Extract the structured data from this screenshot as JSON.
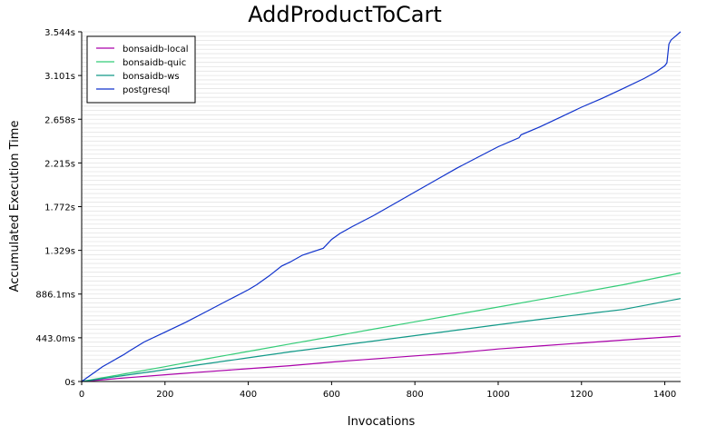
{
  "chart_data": {
    "type": "line",
    "title": "AddProductToCart",
    "xlabel": "Invocations",
    "ylabel": "Accumulated Execution Time",
    "xlim": [
      0,
      1438
    ],
    "ylim": [
      0,
      3.544
    ],
    "x_ticks": [
      0,
      200,
      400,
      600,
      800,
      1000,
      1200,
      1400
    ],
    "y_ticks": [
      {
        "value": 0,
        "label": "0s"
      },
      {
        "value": 0.443,
        "label": "443.0ms"
      },
      {
        "value": 0.8861,
        "label": "886.1ms"
      },
      {
        "value": 1.329,
        "label": "1.329s"
      },
      {
        "value": 1.772,
        "label": "1.772s"
      },
      {
        "value": 2.215,
        "label": "2.215s"
      },
      {
        "value": 2.658,
        "label": "2.658s"
      },
      {
        "value": 3.101,
        "label": "3.101s"
      },
      {
        "value": 3.544,
        "label": "3.544s"
      }
    ],
    "grid": true,
    "legend_position": "top-left",
    "series": [
      {
        "name": "bonsaidb-local",
        "color": "#aa00aa",
        "x": [
          0,
          100,
          200,
          300,
          400,
          500,
          600,
          700,
          800,
          900,
          1000,
          1100,
          1200,
          1300,
          1438
        ],
        "y": [
          0,
          0.035,
          0.068,
          0.099,
          0.13,
          0.16,
          0.197,
          0.228,
          0.26,
          0.29,
          0.33,
          0.36,
          0.39,
          0.42,
          0.46
        ]
      },
      {
        "name": "bonsaidb-quic",
        "color": "#33cc77",
        "x": [
          0,
          100,
          200,
          300,
          400,
          500,
          600,
          700,
          800,
          900,
          1000,
          1100,
          1200,
          1300,
          1438
        ],
        "y": [
          0,
          0.075,
          0.15,
          0.23,
          0.305,
          0.38,
          0.455,
          0.53,
          0.605,
          0.68,
          0.755,
          0.83,
          0.905,
          0.98,
          1.1
        ]
      },
      {
        "name": "bonsaidb-ws",
        "color": "#119988",
        "x": [
          0,
          100,
          200,
          300,
          400,
          500,
          600,
          700,
          800,
          900,
          1000,
          1100,
          1200,
          1300,
          1438
        ],
        "y": [
          0,
          0.06,
          0.12,
          0.18,
          0.24,
          0.3,
          0.355,
          0.41,
          0.465,
          0.52,
          0.575,
          0.63,
          0.68,
          0.73,
          0.84
        ]
      },
      {
        "name": "postgresql",
        "color": "#1133cc",
        "x": [
          0,
          50,
          100,
          115,
          150,
          200,
          250,
          300,
          350,
          400,
          420,
          450,
          480,
          500,
          530,
          580,
          600,
          620,
          650,
          700,
          750,
          800,
          850,
          900,
          950,
          1000,
          1050,
          1055,
          1100,
          1150,
          1200,
          1250,
          1300,
          1350,
          1380,
          1400,
          1405,
          1410,
          1415,
          1438
        ],
        "y": [
          0,
          0.15,
          0.27,
          0.31,
          0.4,
          0.5,
          0.6,
          0.71,
          0.82,
          0.93,
          0.98,
          1.07,
          1.17,
          1.21,
          1.28,
          1.35,
          1.44,
          1.5,
          1.57,
          1.68,
          1.8,
          1.92,
          2.04,
          2.16,
          2.27,
          2.38,
          2.47,
          2.5,
          2.58,
          2.68,
          2.78,
          2.87,
          2.97,
          3.07,
          3.14,
          3.2,
          3.23,
          3.42,
          3.46,
          3.544
        ]
      }
    ]
  }
}
